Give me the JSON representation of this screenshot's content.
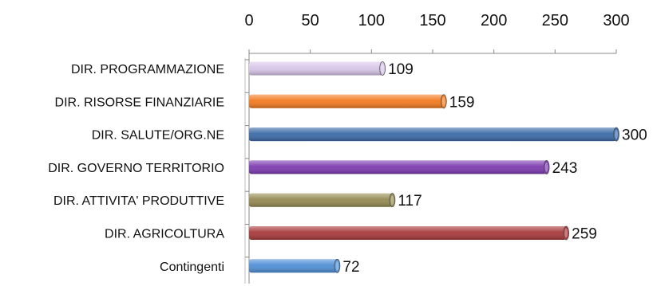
{
  "chart_data": {
    "type": "bar",
    "orientation": "horizontal",
    "categories": [
      "DIR. PROGRAMMAZIONE",
      "DIR. RISORSE FINANZIARIE",
      "DIR. SALUTE/ORG.NE",
      "DIR. GOVERNO TERRITORIO",
      "DIR. ATTIVITA' PRODUTTIVE",
      "DIR. AGRICOLTURA",
      "Contingenti"
    ],
    "values": [
      109,
      159,
      300,
      243,
      117,
      259,
      72
    ],
    "colors": [
      "#d8c6e8",
      "#f37a1f",
      "#3b6aa8",
      "#7d3bb0",
      "#958a52",
      "#a8393b",
      "#4f8fd6"
    ],
    "x_ticks": [
      0,
      50,
      100,
      150,
      200,
      250,
      300
    ],
    "xlim": [
      0,
      300
    ],
    "x_axis_position": "top",
    "grid": false,
    "data_labels": true,
    "legend": "none",
    "title": "",
    "xlabel": "",
    "ylabel": ""
  }
}
